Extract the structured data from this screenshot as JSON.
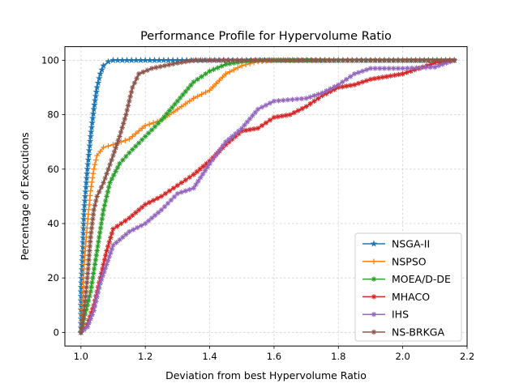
{
  "chart_data": {
    "type": "line",
    "title": "Performance Profile for Hypervolume Ratio",
    "xlabel": "Deviation from best Hypervolume Ratio",
    "ylabel": "Percentage of Executions",
    "xlim": [
      0.95,
      2.2
    ],
    "ylim": [
      -5,
      105
    ],
    "xticks": [
      1.0,
      1.2,
      1.4,
      1.6,
      1.8,
      2.0,
      2.2
    ],
    "xtick_labels": [
      "1.0",
      "1.2",
      "1.4",
      "1.6",
      "1.8",
      "2.0",
      "2.2"
    ],
    "yticks": [
      0,
      20,
      40,
      60,
      80,
      100
    ],
    "ytick_labels": [
      "0",
      "20",
      "40",
      "60",
      "80",
      "100"
    ],
    "grid": true,
    "legend_position": "lower-right",
    "series": [
      {
        "name": "NSGA-II",
        "color": "#1f77b4",
        "marker": "star",
        "points": [
          [
            1.0,
            0
          ],
          [
            1.0,
            15
          ],
          [
            1.005,
            28
          ],
          [
            1.01,
            45
          ],
          [
            1.02,
            60
          ],
          [
            1.03,
            72
          ],
          [
            1.04,
            82
          ],
          [
            1.05,
            90
          ],
          [
            1.06,
            95
          ],
          [
            1.07,
            98
          ],
          [
            1.085,
            99.5
          ],
          [
            1.1,
            100
          ],
          [
            1.2,
            100
          ],
          [
            1.4,
            100
          ],
          [
            1.6,
            100
          ],
          [
            1.8,
            100
          ],
          [
            2.0,
            100
          ],
          [
            2.16,
            100
          ]
        ]
      },
      {
        "name": "NSPSO",
        "color": "#ff7f0e",
        "marker": "plus",
        "points": [
          [
            1.0,
            0
          ],
          [
            1.005,
            10
          ],
          [
            1.01,
            25
          ],
          [
            1.02,
            40
          ],
          [
            1.03,
            52
          ],
          [
            1.04,
            60
          ],
          [
            1.05,
            65
          ],
          [
            1.07,
            68
          ],
          [
            1.1,
            69
          ],
          [
            1.15,
            71
          ],
          [
            1.2,
            76
          ],
          [
            1.25,
            78
          ],
          [
            1.3,
            82
          ],
          [
            1.35,
            86
          ],
          [
            1.4,
            89
          ],
          [
            1.45,
            95
          ],
          [
            1.5,
            98
          ],
          [
            1.55,
            99.5
          ],
          [
            1.6,
            100
          ],
          [
            1.8,
            100
          ],
          [
            2.0,
            100
          ],
          [
            2.16,
            100
          ]
        ]
      },
      {
        "name": "MOEA/D-DE",
        "color": "#2ca02c",
        "marker": "x-star",
        "points": [
          [
            1.0,
            0
          ],
          [
            1.01,
            5
          ],
          [
            1.03,
            15
          ],
          [
            1.05,
            30
          ],
          [
            1.07,
            45
          ],
          [
            1.09,
            55
          ],
          [
            1.12,
            62
          ],
          [
            1.15,
            66
          ],
          [
            1.2,
            72
          ],
          [
            1.25,
            78
          ],
          [
            1.3,
            85
          ],
          [
            1.35,
            92
          ],
          [
            1.4,
            96
          ],
          [
            1.45,
            98.5
          ],
          [
            1.5,
            99.5
          ],
          [
            1.55,
            100
          ],
          [
            1.8,
            100
          ],
          [
            2.0,
            100
          ],
          [
            2.16,
            100
          ]
        ]
      },
      {
        "name": "MHACO",
        "color": "#d62728",
        "marker": "x-star",
        "points": [
          [
            1.0,
            0
          ],
          [
            1.02,
            3
          ],
          [
            1.04,
            10
          ],
          [
            1.06,
            20
          ],
          [
            1.08,
            30
          ],
          [
            1.1,
            38
          ],
          [
            1.15,
            42
          ],
          [
            1.2,
            47
          ],
          [
            1.25,
            50
          ],
          [
            1.3,
            54
          ],
          [
            1.35,
            58
          ],
          [
            1.4,
            63
          ],
          [
            1.45,
            69
          ],
          [
            1.5,
            74
          ],
          [
            1.55,
            75
          ],
          [
            1.6,
            79
          ],
          [
            1.65,
            80
          ],
          [
            1.7,
            83
          ],
          [
            1.75,
            87
          ],
          [
            1.8,
            90
          ],
          [
            1.85,
            91
          ],
          [
            1.9,
            93
          ],
          [
            1.95,
            94
          ],
          [
            2.0,
            95
          ],
          [
            2.05,
            97
          ],
          [
            2.1,
            99
          ],
          [
            2.16,
            100
          ]
        ]
      },
      {
        "name": "IHS",
        "color": "#9467bd",
        "marker": "x-star",
        "points": [
          [
            1.0,
            0
          ],
          [
            1.02,
            2
          ],
          [
            1.04,
            8
          ],
          [
            1.06,
            18
          ],
          [
            1.08,
            25
          ],
          [
            1.1,
            32
          ],
          [
            1.15,
            37
          ],
          [
            1.2,
            40
          ],
          [
            1.25,
            45
          ],
          [
            1.3,
            51
          ],
          [
            1.35,
            53
          ],
          [
            1.4,
            62
          ],
          [
            1.45,
            70
          ],
          [
            1.5,
            75
          ],
          [
            1.55,
            82
          ],
          [
            1.6,
            85
          ],
          [
            1.7,
            86
          ],
          [
            1.75,
            88
          ],
          [
            1.8,
            91
          ],
          [
            1.85,
            95
          ],
          [
            1.9,
            97
          ],
          [
            2.0,
            97
          ],
          [
            2.1,
            97.5
          ],
          [
            2.16,
            100
          ]
        ]
      },
      {
        "name": "NS-BRKGA",
        "color": "#8c564b",
        "marker": "x-star",
        "points": [
          [
            1.0,
            0
          ],
          [
            1.01,
            8
          ],
          [
            1.02,
            20
          ],
          [
            1.03,
            35
          ],
          [
            1.04,
            45
          ],
          [
            1.05,
            50
          ],
          [
            1.07,
            55
          ],
          [
            1.1,
            65
          ],
          [
            1.12,
            72
          ],
          [
            1.14,
            80
          ],
          [
            1.16,
            90
          ],
          [
            1.18,
            95
          ],
          [
            1.22,
            97
          ],
          [
            1.3,
            99
          ],
          [
            1.35,
            100
          ],
          [
            1.5,
            100
          ],
          [
            1.8,
            100
          ],
          [
            2.0,
            100
          ],
          [
            2.16,
            100
          ]
        ]
      }
    ]
  }
}
